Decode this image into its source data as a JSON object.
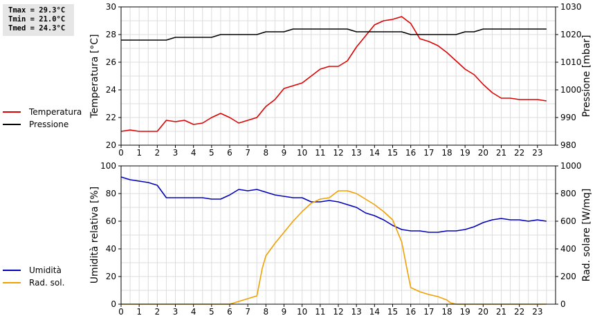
{
  "stats": {
    "tmax": "Tmax = 29.3°C",
    "tmin": "Tmin = 21.0°C",
    "tmed": "Tmed = 24.3°C"
  },
  "legend_top": [
    {
      "label": "Temperatura",
      "color": "#dd0000"
    },
    {
      "label": "Pressione",
      "color": "#000000"
    }
  ],
  "legend_bottom": [
    {
      "label": "Umidità",
      "color": "#0000bb"
    },
    {
      "label": "Rad. sol.",
      "color": "#f0a000"
    }
  ],
  "chart_data": [
    {
      "type": "line",
      "xlim": [
        0,
        24
      ],
      "xticks": [
        "0",
        "1",
        "2",
        "3",
        "4",
        "5",
        "6",
        "7",
        "8",
        "9",
        "10",
        "11",
        "12",
        "13",
        "14",
        "15",
        "16",
        "17",
        "18",
        "19",
        "20",
        "21",
        "22",
        "23"
      ],
      "ylabel": "Temperatura [°C]",
      "ylim": [
        20,
        30
      ],
      "yticks": [
        "20",
        "22",
        "24",
        "26",
        "28",
        "30"
      ],
      "y2label": "Pressione [mbar]",
      "y2lim": [
        980,
        1030
      ],
      "y2ticks": [
        "980",
        "990",
        "1000",
        "1010",
        "1020",
        "1030"
      ],
      "grid": true,
      "series": [
        {
          "name": "Temperatura",
          "axis": "left",
          "color": "#dd0000",
          "x": [
            0,
            0.5,
            1,
            1.5,
            2,
            2.5,
            3,
            3.5,
            4,
            4.5,
            5,
            5.5,
            6,
            6.5,
            7,
            7.5,
            8,
            8.5,
            9,
            9.5,
            10,
            10.5,
            11,
            11.5,
            12,
            12.5,
            13,
            13.5,
            14,
            14.5,
            15,
            15.5,
            16,
            16.5,
            17,
            17.5,
            18,
            18.5,
            19,
            19.5,
            20,
            20.5,
            21,
            21.5,
            22,
            22.5,
            23,
            23.5
          ],
          "y": [
            21.0,
            21.1,
            21.0,
            21.0,
            21.0,
            21.8,
            21.7,
            21.8,
            21.5,
            21.6,
            22.0,
            22.3,
            22.0,
            21.6,
            21.8,
            22.0,
            22.8,
            23.3,
            24.1,
            24.3,
            24.5,
            25.0,
            25.5,
            25.7,
            25.7,
            26.1,
            27.1,
            27.9,
            28.7,
            29.0,
            29.1,
            29.3,
            28.8,
            27.7,
            27.5,
            27.2,
            26.7,
            26.1,
            25.5,
            25.1,
            24.4,
            23.8,
            23.4,
            23.4,
            23.3,
            23.3,
            23.3,
            23.2
          ]
        },
        {
          "name": "Pressione",
          "axis": "right",
          "color": "#000000",
          "x": [
            0,
            0.5,
            1,
            1.5,
            2,
            2.5,
            3,
            3.5,
            4,
            4.5,
            5,
            5.5,
            6,
            6.5,
            7,
            7.5,
            8,
            8.5,
            9,
            9.5,
            10,
            10.5,
            11,
            11.5,
            12,
            12.5,
            13,
            13.5,
            14,
            14.5,
            15,
            15.5,
            16,
            16.5,
            17,
            17.5,
            18,
            18.5,
            19,
            19.5,
            20,
            20.5,
            21,
            21.5,
            22,
            22.5,
            23,
            23.5
          ],
          "y": [
            1018,
            1018,
            1018,
            1018,
            1018,
            1018,
            1019,
            1019,
            1019,
            1019,
            1019,
            1020,
            1020,
            1020,
            1020,
            1020,
            1021,
            1021,
            1021,
            1022,
            1022,
            1022,
            1022,
            1022,
            1022,
            1022,
            1021,
            1021,
            1021,
            1021,
            1021,
            1021,
            1020,
            1020,
            1020,
            1020,
            1020,
            1020,
            1021,
            1021,
            1022,
            1022,
            1022,
            1022,
            1022,
            1022,
            1022,
            1022
          ]
        }
      ]
    },
    {
      "type": "line",
      "xlim": [
        0,
        24
      ],
      "xticks": [
        "0",
        "1",
        "2",
        "3",
        "4",
        "5",
        "6",
        "7",
        "8",
        "9",
        "10",
        "11",
        "12",
        "13",
        "14",
        "15",
        "16",
        "17",
        "18",
        "19",
        "20",
        "21",
        "22",
        "23"
      ],
      "ylabel": "Umidità relativa [%]",
      "ylim": [
        0,
        100
      ],
      "yticks": [
        "0",
        "20",
        "40",
        "60",
        "80",
        "100"
      ],
      "y2label": "Rad. solare [W/mq]",
      "y2lim": [
        0,
        1000
      ],
      "y2ticks": [
        "0",
        "200",
        "400",
        "600",
        "800",
        "1000"
      ],
      "grid": true,
      "series": [
        {
          "name": "Umidità",
          "axis": "left",
          "color": "#0000bb",
          "x": [
            0,
            0.5,
            1,
            1.5,
            2,
            2.5,
            3,
            3.5,
            4,
            4.5,
            5,
            5.5,
            6,
            6.5,
            7,
            7.5,
            8,
            8.5,
            9,
            9.5,
            10,
            10.5,
            11,
            11.5,
            12,
            12.5,
            13,
            13.5,
            14,
            14.5,
            15,
            15.5,
            16,
            16.5,
            17,
            17.5,
            18,
            18.5,
            19,
            19.5,
            20,
            20.5,
            21,
            21.5,
            22,
            22.5,
            23,
            23.5
          ],
          "y": [
            92,
            90,
            89,
            88,
            86,
            77,
            77,
            77,
            77,
            77,
            76,
            76,
            79,
            83,
            82,
            83,
            81,
            79,
            78,
            77,
            77,
            74,
            74,
            75,
            74,
            72,
            70,
            66,
            64,
            61,
            57,
            54,
            53,
            53,
            52,
            52,
            53,
            53,
            54,
            56,
            59,
            61,
            62,
            61,
            61,
            60,
            61,
            60
          ]
        },
        {
          "name": "Rad. sol.",
          "axis": "right",
          "color": "#f0a000",
          "x": [
            0,
            1,
            2,
            3,
            4,
            5,
            6,
            6.5,
            7,
            7.5,
            7.8,
            8,
            8.5,
            9,
            9.5,
            10,
            10.5,
            11,
            11.5,
            12,
            12.5,
            13,
            13.5,
            14,
            14.5,
            15,
            15.5,
            15.8,
            16,
            16.5,
            17,
            17.5,
            18,
            18.2,
            18.5,
            19,
            20,
            21,
            22,
            23,
            23.5
          ],
          "y": [
            0,
            0,
            0,
            0,
            0,
            0,
            0,
            20,
            40,
            60,
            260,
            350,
            440,
            520,
            600,
            670,
            730,
            760,
            770,
            820,
            820,
            800,
            760,
            720,
            670,
            610,
            450,
            250,
            120,
            90,
            70,
            55,
            30,
            10,
            0,
            0,
            0,
            0,
            0,
            0,
            0
          ]
        }
      ]
    }
  ]
}
